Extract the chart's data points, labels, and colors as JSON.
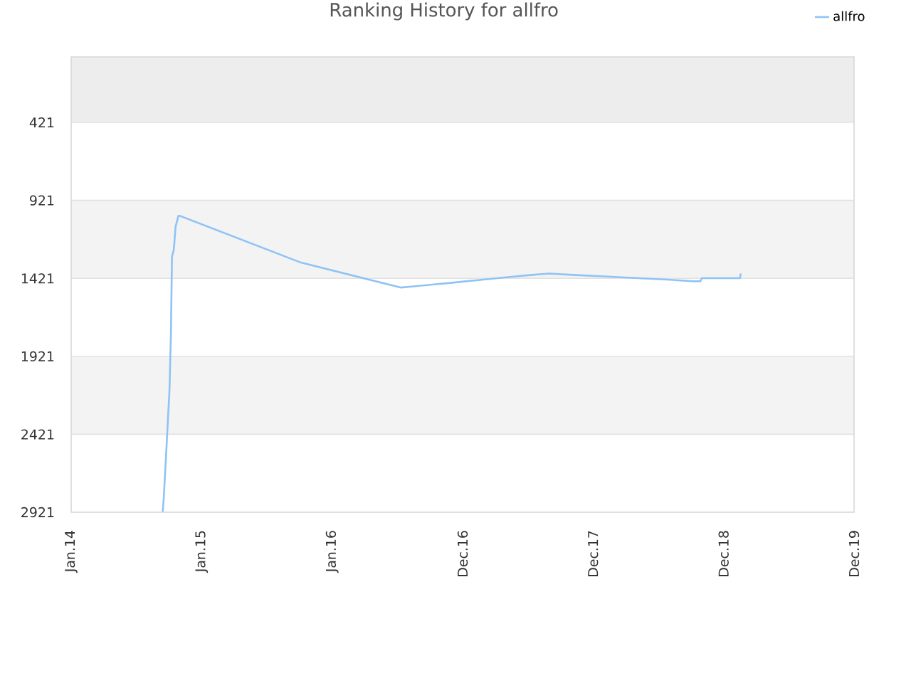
{
  "chart_data": {
    "type": "line",
    "title": "Ranking History for allfro",
    "x": [
      "2014-09-14",
      "2014-09-17",
      "2014-09-21",
      "2014-09-25",
      "2014-09-29",
      "2014-10-03",
      "2014-10-07",
      "2014-10-10",
      "2014-10-15",
      "2014-10-20",
      "2014-10-28",
      "2014-11-01",
      "2015-10-06",
      "2016-07-12",
      "2016-08-27",
      "2016-10-12",
      "2016-11-27",
      "2017-01-09",
      "2017-02-22",
      "2017-04-07",
      "2017-05-23",
      "2017-07-08",
      "2017-08-30",
      "2017-11-14",
      "2018-02-10",
      "2018-05-08",
      "2018-08-04",
      "2018-10-09",
      "2018-10-27",
      "2018-10-31",
      "2019-02-15",
      "2019-02-17"
    ],
    "series": [
      {
        "name": "allfro",
        "color": "#8fc3f5",
        "values": [
          2920,
          2830,
          2660,
          2490,
          2310,
          2140,
          1780,
          1280,
          1240,
          1090,
          1020,
          1020,
          1320,
          1480,
          1470,
          1460,
          1450,
          1440,
          1430,
          1420,
          1410,
          1400,
          1390,
          1400,
          1410,
          1420,
          1430,
          1440,
          1440,
          1420,
          1420,
          1390
        ]
      }
    ],
    "xlim": [
      "2014-01-01",
      "2019-12-31"
    ],
    "xticks": [
      {
        "value": "2014-01-01",
        "label": "Jan.14"
      },
      {
        "value": "2015-01-01",
        "label": "Jan.15"
      },
      {
        "value": "2016-01-01",
        "label": "Jan.16"
      },
      {
        "value": "2016-12-31",
        "label": "Dec.16"
      },
      {
        "value": "2017-12-31",
        "label": "Dec.17"
      },
      {
        "value": "2018-12-31",
        "label": "Dec.18"
      },
      {
        "value": "2019-12-31",
        "label": "Dec.19"
      }
    ],
    "ylim": [
      2921,
      1
    ],
    "yticks": [
      421,
      921,
      1421,
      1921,
      2421,
      2921
    ],
    "grid": "y",
    "legend": "top right",
    "bands": [
      {
        "axis": "y",
        "from": 1,
        "to": 421,
        "color": "#ededed"
      },
      {
        "axis": "y",
        "from": 921,
        "to": 1421,
        "color": "#f3f3f3"
      },
      {
        "axis": "y",
        "from": 1921,
        "to": 2421,
        "color": "#f3f3f3"
      }
    ]
  }
}
